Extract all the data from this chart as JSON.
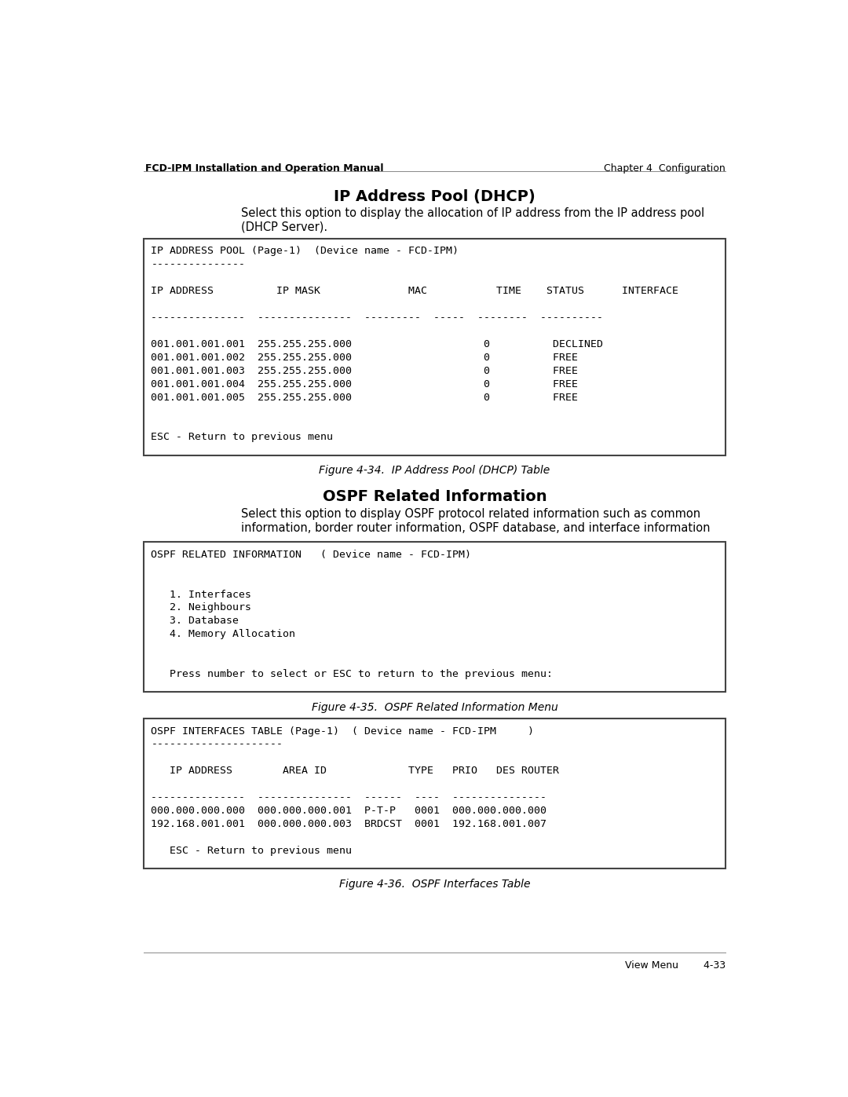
{
  "header_left": "FCD-IPM Installation and Operation Manual",
  "header_right": "Chapter 4  Configuration",
  "footer_right": "View Menu        4-33",
  "section1_title": "IP Address Pool (DHCP)",
  "section1_desc1": "Select this option to display the allocation of IP address from the IP address pool",
  "section1_desc2": "(DHCP Server).",
  "box1_lines": [
    "IP ADDRESS POOL (Page-1)  (Device name - FCD-IPM)",
    "---------------",
    "",
    "IP ADDRESS          IP MASK              MAC           TIME    STATUS      INTERFACE",
    "",
    "---------------  ---------------  ---------  -----  --------  ----------",
    "",
    "001.001.001.001  255.255.255.000                     0          DECLINED",
    "001.001.001.002  255.255.255.000                     0          FREE",
    "001.001.001.003  255.255.255.000                     0          FREE",
    "001.001.001.004  255.255.255.000                     0          FREE",
    "001.001.001.005  255.255.255.000                     0          FREE",
    "",
    "",
    "ESC - Return to previous menu"
  ],
  "fig1_caption": "Figure 4-34.  IP Address Pool (DHCP) Table",
  "section2_title": "OSPF Related Information",
  "section2_desc1": "Select this option to display OSPF protocol related information such as common",
  "section2_desc2": "information, border router information, OSPF database, and interface information",
  "box2_lines": [
    "OSPF RELATED INFORMATION   ( Device name - FCD-IPM)",
    "",
    "",
    "   1. Interfaces",
    "   2. Neighbours",
    "   3. Database",
    "   4. Memory Allocation",
    "",
    "",
    "   Press number to select or ESC to return to the previous menu:"
  ],
  "fig2_caption": "Figure 4-35.  OSPF Related Information Menu",
  "box3_lines": [
    "OSPF INTERFACES TABLE (Page-1)  ( Device name - FCD-IPM     )",
    "---------------------",
    "",
    "   IP ADDRESS        AREA ID             TYPE   PRIO   DES ROUTER",
    "",
    "---------------  ---------------  ------  ----  ---------------",
    "000.000.000.000  000.000.000.001  P-T-P   0001  000.000.000.000",
    "192.168.001.001  000.000.000.003  BRDCST  0001  192.168.001.007",
    "",
    "   ESC - Return to previous menu"
  ],
  "fig3_caption": "Figure 4-36.  OSPF Interfaces Table",
  "bg_color": "#ffffff",
  "box_bg": "#ffffff",
  "box_border": "#444444",
  "text_color": "#000000",
  "mono_font_size": 9.5,
  "title_font_size": 14,
  "desc_font_size": 10.5,
  "caption_font_size": 10,
  "header_font_size": 9
}
